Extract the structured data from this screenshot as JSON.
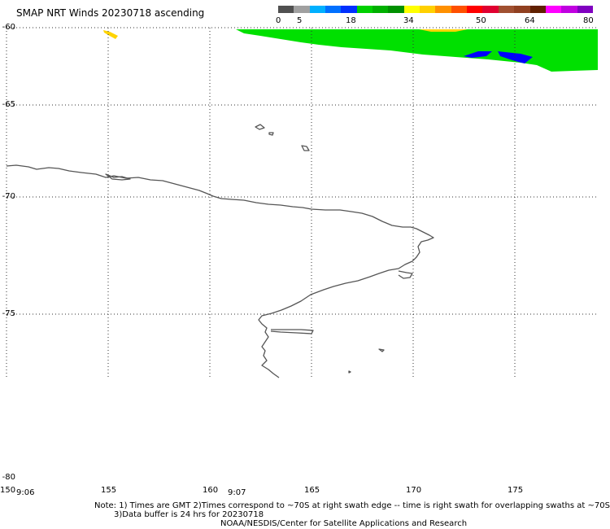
{
  "title": "SMAP NRT Winds 20230718 ascending",
  "color_scale": {
    "labels": [
      "0",
      "5",
      "18",
      "34",
      "50",
      "64",
      "80"
    ],
    "segments": [
      {
        "color": "#505050"
      },
      {
        "color": "#a0a0a0"
      },
      {
        "color": "#00b0ff"
      },
      {
        "color": "#0070ff"
      },
      {
        "color": "#0030ff"
      },
      {
        "color": "#00d000"
      },
      {
        "color": "#00b000"
      },
      {
        "color": "#009000"
      },
      {
        "color": "#ffff00"
      },
      {
        "color": "#ffd000"
      },
      {
        "color": "#ff9000"
      },
      {
        "color": "#ff5000"
      },
      {
        "color": "#ff0000"
      },
      {
        "color": "#e00030"
      },
      {
        "color": "#a05030"
      },
      {
        "color": "#904020"
      },
      {
        "color": "#602000"
      },
      {
        "color": "#ff00ff"
      },
      {
        "color": "#c000e0"
      },
      {
        "color": "#8000c0"
      }
    ]
  },
  "lat_labels": [
    "-60",
    "-65",
    "-70",
    "-75",
    "-80"
  ],
  "lon_labels": [
    "150",
    "155",
    "160",
    "165",
    "170",
    "175"
  ],
  "swath_times": [
    "9:06",
    "9:07"
  ],
  "notes": {
    "line1": "Note: 1) Times are GMT 2)Times correspond to ~70S at right swath edge -- time is right swath for overlapping swaths at ~70S",
    "line2": "3)Data buffer is 24 hrs for 20230718",
    "line3": "NOAA/NESDIS/Center for Satellite Applications and Research"
  },
  "wind_colors": {
    "green": "#00e000",
    "blue": "#0000ff",
    "yellow": "#ffd400",
    "coast": "#555555"
  }
}
